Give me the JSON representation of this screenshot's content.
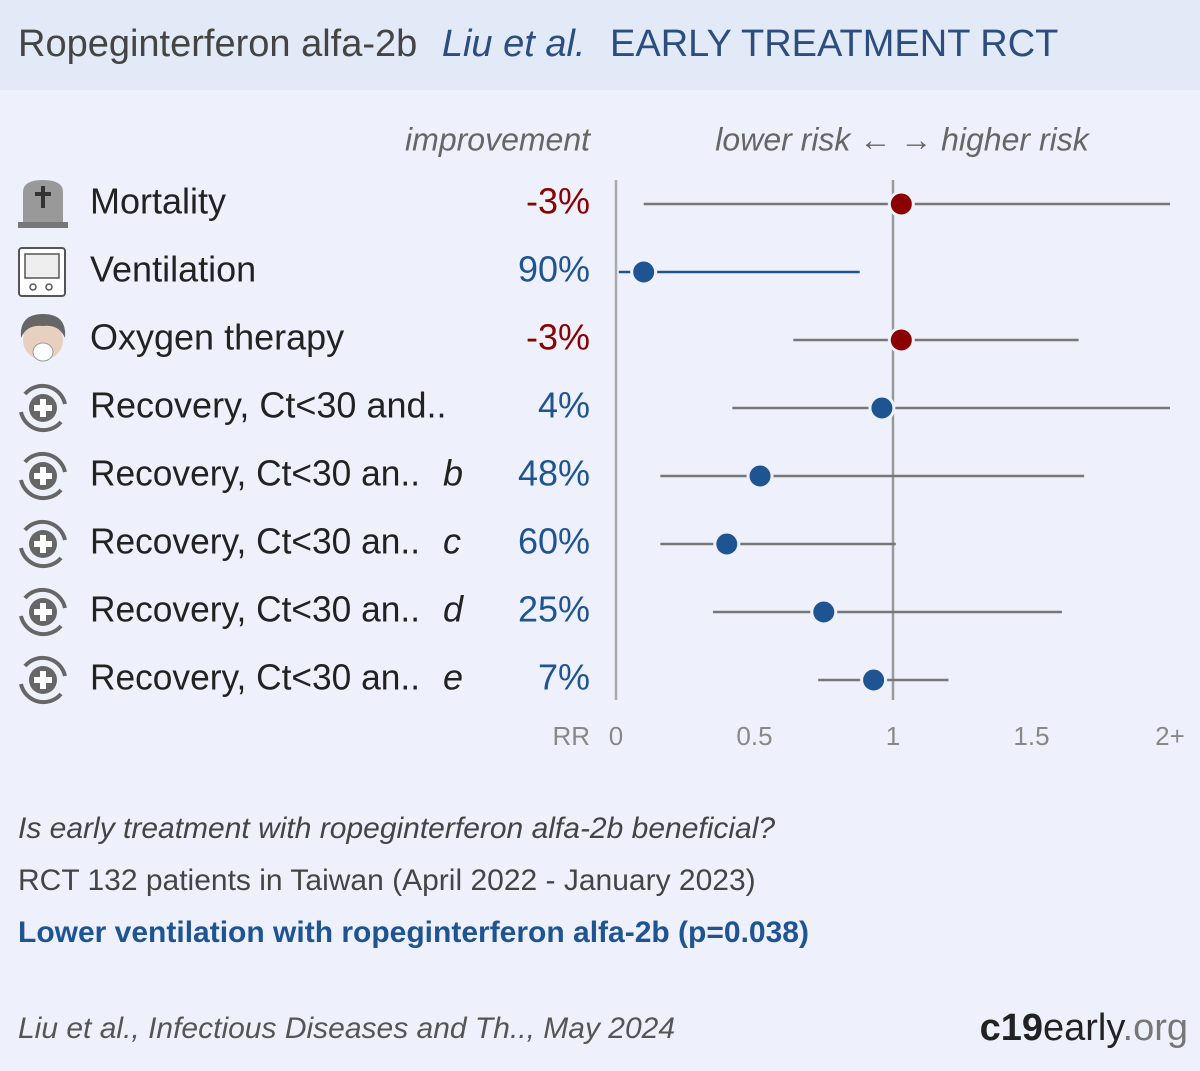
{
  "chart_data": {
    "type": "forest",
    "title": "Ropeginterferon alfa-2b",
    "authors": "Liu et al.",
    "subtitle": "EARLY TREATMENT RCT",
    "improvement_header": "improvement",
    "risk_header": "lower risk ← → higher risk",
    "x_label": "RR",
    "categories": [
      "Mortality",
      "Ventilation",
      "Oxygen therapy",
      "Recovery, Ct<30 and..",
      "Recovery, Ct<30 an..",
      "Recovery, Ct<30 an..",
      "Recovery, Ct<30 an..",
      "Recovery, Ct<30 an.."
    ],
    "suffixes": [
      null,
      null,
      null,
      null,
      "b",
      "c",
      "d",
      "e"
    ],
    "improvement": [
      "-3%",
      "90%",
      "-3%",
      "4%",
      "48%",
      "60%",
      "25%",
      "7%"
    ],
    "values": [
      1.03,
      0.1,
      1.03,
      0.96,
      0.52,
      0.4,
      0.75,
      0.93
    ],
    "lower": [
      0.1,
      0.01,
      0.64,
      0.42,
      0.16,
      0.16,
      0.35,
      0.73
    ],
    "upper": [
      2.0,
      0.88,
      1.67,
      2.0,
      1.69,
      1.01,
      1.61,
      1.2
    ],
    "colors": [
      "#8b0000",
      "#1f5493",
      "#8b0000",
      "#1f5493",
      "#1f5493",
      "#1f5493",
      "#1f5493",
      "#1f5493"
    ],
    "ci_colors": [
      "#777777",
      "#1f5493",
      "#777777",
      "#777777",
      "#777777",
      "#777777",
      "#777777",
      "#777777"
    ],
    "reference_line": 1,
    "xlim": [
      0,
      2
    ],
    "xticks": [
      0,
      0.5,
      1,
      1.5,
      {
        "value": 2,
        "label": "2+"
      }
    ],
    "question": "Is early treatment with ropeginterferon alfa-2b beneficial?",
    "study": "RCT 132 patients in Taiwan (April 2022 - January 2023)",
    "conclusion": "Lower ventilation with ropeginterferon alfa-2b (p=0.038)",
    "citation": "Liu et al., Infectious Diseases and Th.., May 2024",
    "logo": [
      "c19",
      "early",
      ".org"
    ]
  }
}
